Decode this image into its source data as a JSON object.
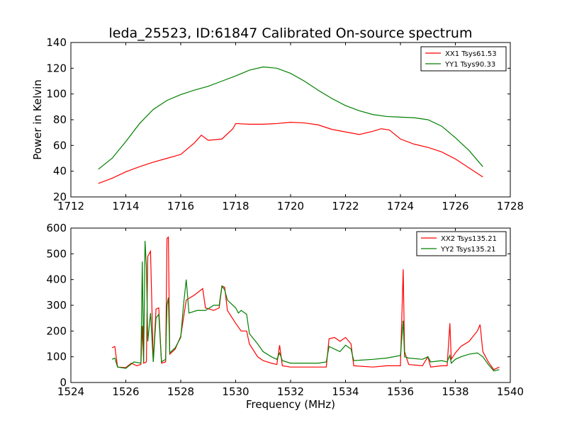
{
  "figure": {
    "title": "leda_25523, ID:61847 Calibrated On-source spectrum"
  },
  "chart_data": [
    {
      "type": "line",
      "title": "leda_25523, ID:61847 Calibrated On-source spectrum",
      "xlabel": "",
      "ylabel": "Power in Kelvin",
      "xlim": [
        1712,
        1728
      ],
      "ylim": [
        20,
        140
      ],
      "xticks": [
        "1712",
        "1714",
        "1716",
        "1718",
        "1720",
        "1722",
        "1724",
        "1726",
        "1728"
      ],
      "yticks": [
        "20",
        "40",
        "60",
        "80",
        "100",
        "120",
        "140"
      ],
      "legend_position": "top-right",
      "grid": false,
      "series": [
        {
          "name": "XX1 Tsys61.53",
          "color": "#ff0000",
          "points": [
            [
              1713.0,
              30.5
            ],
            [
              1713.5,
              34.5
            ],
            [
              1714.0,
              39.5
            ],
            [
              1714.5,
              43.5
            ],
            [
              1715.0,
              47
            ],
            [
              1715.5,
              50
            ],
            [
              1716.0,
              53
            ],
            [
              1716.5,
              62
            ],
            [
              1716.75,
              68
            ],
            [
              1717.0,
              64
            ],
            [
              1717.5,
              65
            ],
            [
              1717.9,
              73
            ],
            [
              1718.0,
              77
            ],
            [
              1718.5,
              76.5
            ],
            [
              1719.0,
              76.5
            ],
            [
              1719.5,
              77
            ],
            [
              1720.0,
              78
            ],
            [
              1720.5,
              77.5
            ],
            [
              1721.0,
              76
            ],
            [
              1721.5,
              72.5
            ],
            [
              1722.0,
              70.5
            ],
            [
              1722.5,
              68.5
            ],
            [
              1723.0,
              71
            ],
            [
              1723.3,
              73
            ],
            [
              1723.6,
              72
            ],
            [
              1724.0,
              65
            ],
            [
              1724.5,
              61
            ],
            [
              1725.0,
              58.5
            ],
            [
              1725.5,
              55
            ],
            [
              1726.0,
              49.5
            ],
            [
              1726.5,
              42.5
            ],
            [
              1727.0,
              35.5
            ]
          ]
        },
        {
          "name": "YY1 Tsys90.33",
          "color": "#008000",
          "points": [
            [
              1713.0,
              41.5
            ],
            [
              1713.5,
              50
            ],
            [
              1714.0,
              63
            ],
            [
              1714.5,
              77
            ],
            [
              1715.0,
              88
            ],
            [
              1715.5,
              95
            ],
            [
              1716.0,
              99.5
            ],
            [
              1716.5,
              103
            ],
            [
              1717.0,
              106
            ],
            [
              1717.5,
              110
            ],
            [
              1718.0,
              114
            ],
            [
              1718.5,
              118.5
            ],
            [
              1719.0,
              121
            ],
            [
              1719.5,
              120
            ],
            [
              1720.0,
              116
            ],
            [
              1720.5,
              110
            ],
            [
              1721.0,
              103
            ],
            [
              1721.5,
              96.5
            ],
            [
              1722.0,
              91
            ],
            [
              1722.5,
              87
            ],
            [
              1723.0,
              84
            ],
            [
              1723.5,
              82.5
            ],
            [
              1724.0,
              82
            ],
            [
              1724.5,
              81.5
            ],
            [
              1725.0,
              80
            ],
            [
              1725.5,
              75
            ],
            [
              1726.0,
              66
            ],
            [
              1726.5,
              56
            ],
            [
              1727.0,
              43.5
            ]
          ]
        }
      ]
    },
    {
      "type": "line",
      "title": "",
      "xlabel": "Frequency (MHz)",
      "ylabel": "",
      "xlim": [
        1524,
        1540
      ],
      "ylim": [
        0,
        600
      ],
      "xticks": [
        "1524",
        "1526",
        "1528",
        "1530",
        "1532",
        "1534",
        "1536",
        "1538",
        "1540"
      ],
      "yticks": [
        "0",
        "100",
        "200",
        "300",
        "400",
        "500",
        "600"
      ],
      "legend_position": "top-right",
      "grid": false,
      "series": [
        {
          "name": "XX2 Tsys135.21",
          "color": "#ff0000",
          "points": [
            [
              1525.5,
              135
            ],
            [
              1525.6,
              140
            ],
            [
              1525.7,
              60
            ],
            [
              1526.0,
              58
            ],
            [
              1526.2,
              75
            ],
            [
              1526.4,
              65
            ],
            [
              1526.55,
              70
            ],
            [
              1526.6,
              220
            ],
            [
              1526.65,
              75
            ],
            [
              1526.75,
              80
            ],
            [
              1526.8,
              490
            ],
            [
              1526.9,
              510
            ],
            [
              1527.0,
              80
            ],
            [
              1527.1,
              285
            ],
            [
              1527.2,
              290
            ],
            [
              1527.3,
              75
            ],
            [
              1527.45,
              80
            ],
            [
              1527.5,
              560
            ],
            [
              1527.55,
              565
            ],
            [
              1527.6,
              110
            ],
            [
              1527.8,
              130
            ],
            [
              1528.0,
              180
            ],
            [
              1528.2,
              320
            ],
            [
              1528.5,
              340
            ],
            [
              1528.8,
              365
            ],
            [
              1528.9,
              290
            ],
            [
              1529.2,
              280
            ],
            [
              1529.4,
              290
            ],
            [
              1529.5,
              375
            ],
            [
              1529.6,
              370
            ],
            [
              1529.7,
              280
            ],
            [
              1530.0,
              230
            ],
            [
              1530.2,
              200
            ],
            [
              1530.4,
              200
            ],
            [
              1530.5,
              150
            ],
            [
              1530.8,
              100
            ],
            [
              1531.0,
              85
            ],
            [
              1531.3,
              75
            ],
            [
              1531.5,
              70
            ],
            [
              1531.6,
              145
            ],
            [
              1531.7,
              65
            ],
            [
              1532.0,
              60
            ],
            [
              1532.5,
              60
            ],
            [
              1533.0,
              60
            ],
            [
              1533.3,
              60
            ],
            [
              1533.4,
              170
            ],
            [
              1533.6,
              175
            ],
            [
              1533.8,
              160
            ],
            [
              1534.0,
              175
            ],
            [
              1534.2,
              150
            ],
            [
              1534.3,
              65
            ],
            [
              1535.0,
              60
            ],
            [
              1535.5,
              65
            ],
            [
              1536.0,
              65
            ],
            [
              1536.1,
              440
            ],
            [
              1536.15,
              120
            ],
            [
              1536.3,
              70
            ],
            [
              1536.8,
              65
            ],
            [
              1537.0,
              100
            ],
            [
              1537.1,
              60
            ],
            [
              1537.5,
              65
            ],
            [
              1537.7,
              65
            ],
            [
              1537.8,
              230
            ],
            [
              1537.85,
              90
            ],
            [
              1538.0,
              115
            ],
            [
              1538.2,
              140
            ],
            [
              1538.5,
              160
            ],
            [
              1538.8,
              200
            ],
            [
              1538.9,
              225
            ],
            [
              1539.0,
              120
            ],
            [
              1539.2,
              80
            ],
            [
              1539.4,
              50
            ],
            [
              1539.6,
              60
            ]
          ]
        },
        {
          "name": "YY2 Tsys135.21",
          "color": "#008000",
          "points": [
            [
              1525.5,
              90
            ],
            [
              1525.6,
              95
            ],
            [
              1525.7,
              60
            ],
            [
              1526.0,
              55
            ],
            [
              1526.3,
              80
            ],
            [
              1526.55,
              75
            ],
            [
              1526.6,
              470
            ],
            [
              1526.65,
              80
            ],
            [
              1526.7,
              550
            ],
            [
              1526.75,
              450
            ],
            [
              1526.8,
              160
            ],
            [
              1526.9,
              270
            ],
            [
              1527.0,
              80
            ],
            [
              1527.1,
              250
            ],
            [
              1527.2,
              265
            ],
            [
              1527.3,
              80
            ],
            [
              1527.45,
              90
            ],
            [
              1527.5,
              300
            ],
            [
              1527.55,
              330
            ],
            [
              1527.6,
              115
            ],
            [
              1527.8,
              135
            ],
            [
              1528.0,
              175
            ],
            [
              1528.1,
              300
            ],
            [
              1528.2,
              400
            ],
            [
              1528.3,
              270
            ],
            [
              1528.6,
              280
            ],
            [
              1528.9,
              280
            ],
            [
              1529.2,
              300
            ],
            [
              1529.4,
              300
            ],
            [
              1529.5,
              375
            ],
            [
              1529.6,
              360
            ],
            [
              1529.7,
              320
            ],
            [
              1530.0,
              290
            ],
            [
              1530.1,
              270
            ],
            [
              1530.2,
              280
            ],
            [
              1530.4,
              265
            ],
            [
              1530.5,
              190
            ],
            [
              1530.8,
              150
            ],
            [
              1531.0,
              120
            ],
            [
              1531.3,
              100
            ],
            [
              1531.5,
              90
            ],
            [
              1531.6,
              115
            ],
            [
              1531.7,
              85
            ],
            [
              1532.0,
              75
            ],
            [
              1532.5,
              75
            ],
            [
              1533.0,
              75
            ],
            [
              1533.3,
              80
            ],
            [
              1533.4,
              140
            ],
            [
              1533.6,
              130
            ],
            [
              1533.8,
              120
            ],
            [
              1534.0,
              145
            ],
            [
              1534.2,
              130
            ],
            [
              1534.3,
              85
            ],
            [
              1535.0,
              90
            ],
            [
              1535.5,
              95
            ],
            [
              1536.0,
              105
            ],
            [
              1536.1,
              240
            ],
            [
              1536.15,
              100
            ],
            [
              1536.3,
              95
            ],
            [
              1536.8,
              90
            ],
            [
              1537.0,
              100
            ],
            [
              1537.1,
              80
            ],
            [
              1537.5,
              85
            ],
            [
              1537.7,
              80
            ],
            [
              1537.8,
              105
            ],
            [
              1537.85,
              75
            ],
            [
              1538.0,
              90
            ],
            [
              1538.2,
              100
            ],
            [
              1538.5,
              110
            ],
            [
              1538.8,
              115
            ],
            [
              1539.0,
              100
            ],
            [
              1539.2,
              70
            ],
            [
              1539.4,
              45
            ],
            [
              1539.6,
              50
            ]
          ]
        }
      ]
    }
  ]
}
